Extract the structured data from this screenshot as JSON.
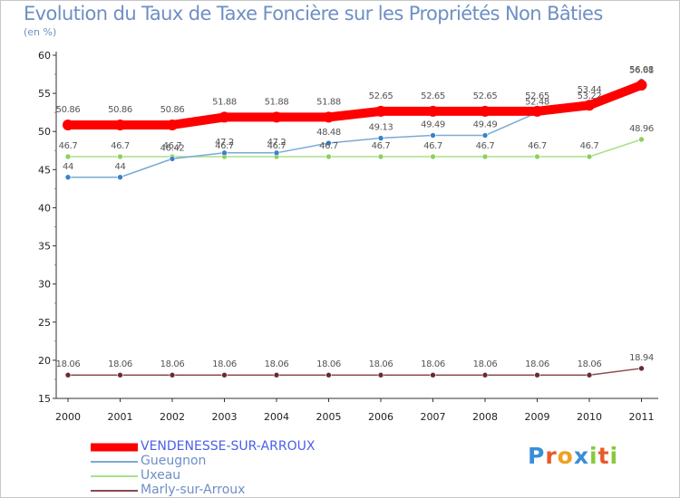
{
  "chart_data": {
    "type": "line",
    "title": "Evolution du Taux de Taxe Foncière sur les Propriétés Non Bâties",
    "subtitle": "(en %)",
    "xlabel": "",
    "ylabel": "",
    "ylim": [
      15,
      60
    ],
    "yticks": [
      "15",
      "20",
      "25",
      "30",
      "35",
      "40",
      "45",
      "50",
      "55",
      "60"
    ],
    "categories": [
      "2000",
      "2001",
      "2002",
      "2003",
      "2004",
      "2005",
      "2006",
      "2007",
      "2008",
      "2009",
      "2010",
      "2011"
    ],
    "series": [
      {
        "name": "VENDENESSE-SUR-ARROUX",
        "values": [
          50.86,
          50.86,
          50.86,
          51.88,
          51.88,
          51.88,
          52.65,
          52.65,
          52.65,
          52.65,
          53.44,
          56.08
        ],
        "labels": [
          "50.86",
          "50.86",
          "50.86",
          "51.88",
          "51.88",
          "51.88",
          "52.65",
          "52.65",
          "52.65",
          "52.65",
          "53.44",
          "56.08"
        ],
        "color": "#ff0000",
        "dot": "#ff0000"
      },
      {
        "name": "Gueugnon",
        "values": [
          44,
          44,
          46.42,
          47.2,
          47.2,
          48.48,
          49.13,
          49.49,
          49.49,
          52.48,
          53.22,
          56.61
        ],
        "labels": [
          "44",
          "44",
          "46.42",
          "47.2",
          "47.2",
          "48.48",
          "49.13",
          "49.49",
          "49.49",
          "52.48",
          "53.22",
          "56.61"
        ],
        "color": "#7aaad4",
        "dot": "#3a82c8"
      },
      {
        "name": "Uxeau",
        "values": [
          46.7,
          46.7,
          46.7,
          46.7,
          46.7,
          46.7,
          46.7,
          46.7,
          46.7,
          46.7,
          46.7,
          48.96
        ],
        "labels": [
          "46.7",
          "46.7",
          "46.7",
          "46.7",
          "46.7",
          "46.7",
          "46.7",
          "46.7",
          "46.7",
          "46.7",
          "46.7",
          "48.96"
        ],
        "color": "#a8e08a",
        "dot": "#8ed05a"
      },
      {
        "name": "Marly-sur-Arroux",
        "values": [
          18.06,
          18.06,
          18.06,
          18.06,
          18.06,
          18.06,
          18.06,
          18.06,
          18.06,
          18.06,
          18.06,
          18.94
        ],
        "labels": [
          "18.06",
          "18.06",
          "18.06",
          "18.06",
          "18.06",
          "18.06",
          "18.06",
          "18.06",
          "18.06",
          "18.06",
          "18.06",
          "18.94"
        ],
        "color": "#8a4a50",
        "dot": "#6a2a30"
      }
    ],
    "legend_position": "bottom-left"
  },
  "logo": {
    "letters": [
      "P",
      "r",
      "o",
      "x",
      "i",
      "t",
      "i"
    ],
    "colors": [
      "#3a8ed8",
      "#e85a2a",
      "#f0a020",
      "#3a8ed8",
      "#8ac83a",
      "#e85a2a",
      "#8ac83a"
    ]
  }
}
